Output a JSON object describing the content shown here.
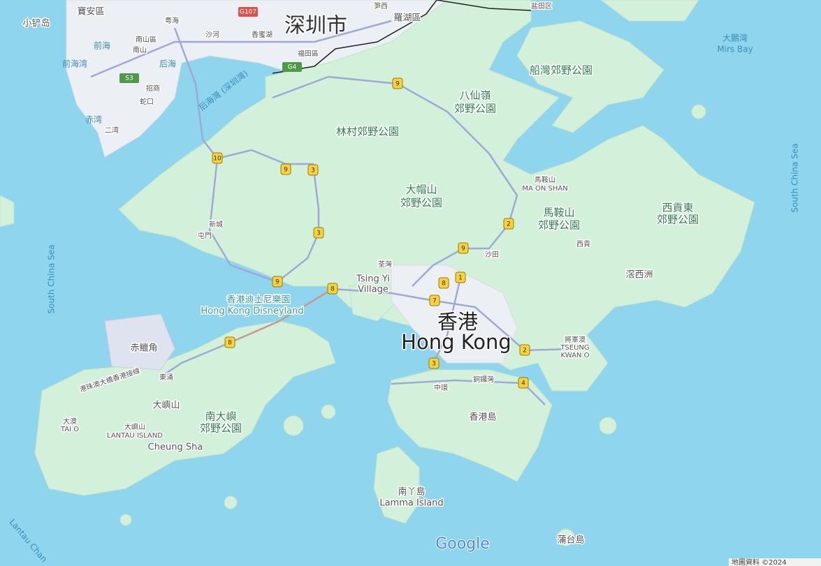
{
  "labels": [
    "寶安區",
    "小铲岛",
    "深圳市",
    "羅湖區",
    "笋西",
    "盐田区",
    "南山區",
    "粤海",
    "沙河",
    "香蜜湖",
    "福田區",
    "前海",
    "南山",
    "前海湾",
    "后海",
    "招商",
    "蛇口",
    "赤湾",
    "二湾",
    "后海灣 (深圳灣)",
    "船灣郊野公園",
    "大鵬灣",
    "Mirs Bay",
    "八仙嶺",
    "郊野公園",
    "林村郊野公園",
    "大帽山",
    "郊野公園",
    "馬鞍山",
    "MA ON SHAN",
    "馬鞍山",
    "郊野公園",
    "西貢東",
    "郊野公園",
    "西貢",
    "沙田",
    "滘西洲",
    "South China Sea",
    "South China Sea",
    "新城",
    "屯門",
    "荃灣",
    "Tsing Yi",
    "Village",
    "香港迪士尼樂園",
    "Hong Kong Disneyland",
    "香港",
    "Hong Kong",
    "將軍澳",
    "TSEUNG",
    "KWAN O",
    "赤鱲角",
    "港珠澳大橋香港接線",
    "東涌",
    "中環",
    "銅鑼灣",
    "香港島",
    "大嶼山",
    "南大嶼",
    "郊野公園",
    "大澳",
    "TAI O",
    "大嶼山",
    "LANTAU ISLAND",
    "Cheung Sha",
    "南丫島",
    "Lamma Island",
    "蒲台島",
    "Lantau Chan"
  ],
  "route_shields": [
    "9",
    "10",
    "9",
    "3",
    "3",
    "9",
    "8",
    "2",
    "9",
    "8",
    "1",
    "7",
    "2",
    "3",
    "4",
    "8"
  ],
  "highway_shields": [
    "G107",
    "G4",
    "S3"
  ],
  "logo": "Google",
  "attribution": "地圖資料 ©2024"
}
